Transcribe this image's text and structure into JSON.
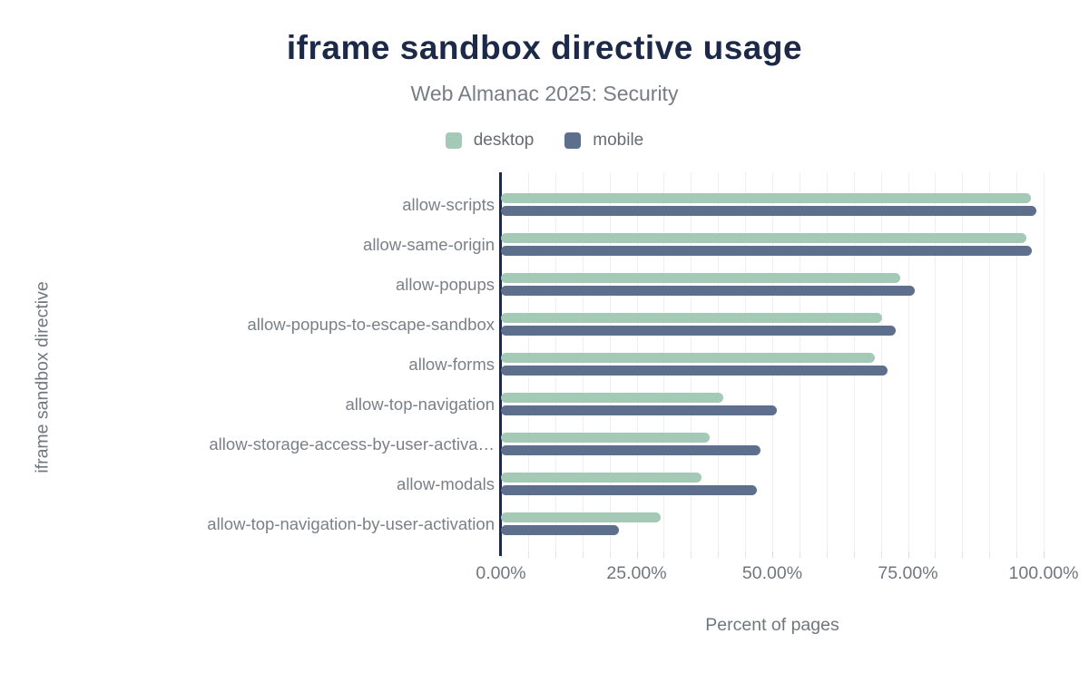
{
  "chart_data": {
    "type": "bar",
    "orientation": "horizontal",
    "title": "iframe sandbox directive usage",
    "subtitle": "Web Almanac 2025: Security",
    "xlabel": "Percent of pages",
    "ylabel": "iframe sandbox directive",
    "xlim": [
      0,
      100
    ],
    "x_ticks": [
      0,
      25,
      50,
      75,
      100
    ],
    "x_tick_labels": [
      "0.00%",
      "25.00%",
      "50.00%",
      "75.00%",
      "100.00%"
    ],
    "minor_grid_step_pct": 5,
    "grid": true,
    "legend_position": "top",
    "categories": [
      "allow-scripts",
      "allow-same-origin",
      "allow-popups",
      "allow-popups-to-escape-sandbox",
      "allow-forms",
      "allow-top-navigation",
      "allow-storage-access-by-user-activa…",
      "allow-modals",
      "allow-top-navigation-by-user-activation"
    ],
    "series": [
      {
        "name": "desktop",
        "color": "#a5c9b7",
        "values": [
          97.7,
          96.8,
          73.5,
          70.2,
          68.9,
          41.0,
          38.4,
          37.0,
          29.5
        ]
      },
      {
        "name": "mobile",
        "color": "#5d6f8c",
        "values": [
          98.6,
          97.9,
          76.3,
          72.7,
          71.3,
          50.8,
          47.8,
          47.1,
          21.7
        ]
      }
    ]
  },
  "colors": {
    "title": "#1c2948",
    "axis_line": "#1c2948",
    "subtitle_text": "#777d85",
    "category_label": "#7a8087",
    "tick_label": "#70767e",
    "axis_title": "#70767e",
    "legend_text": "#666c73",
    "gridline": "#efefef",
    "tick_mark": "#e2e4e8",
    "background": "#ffffff"
  }
}
